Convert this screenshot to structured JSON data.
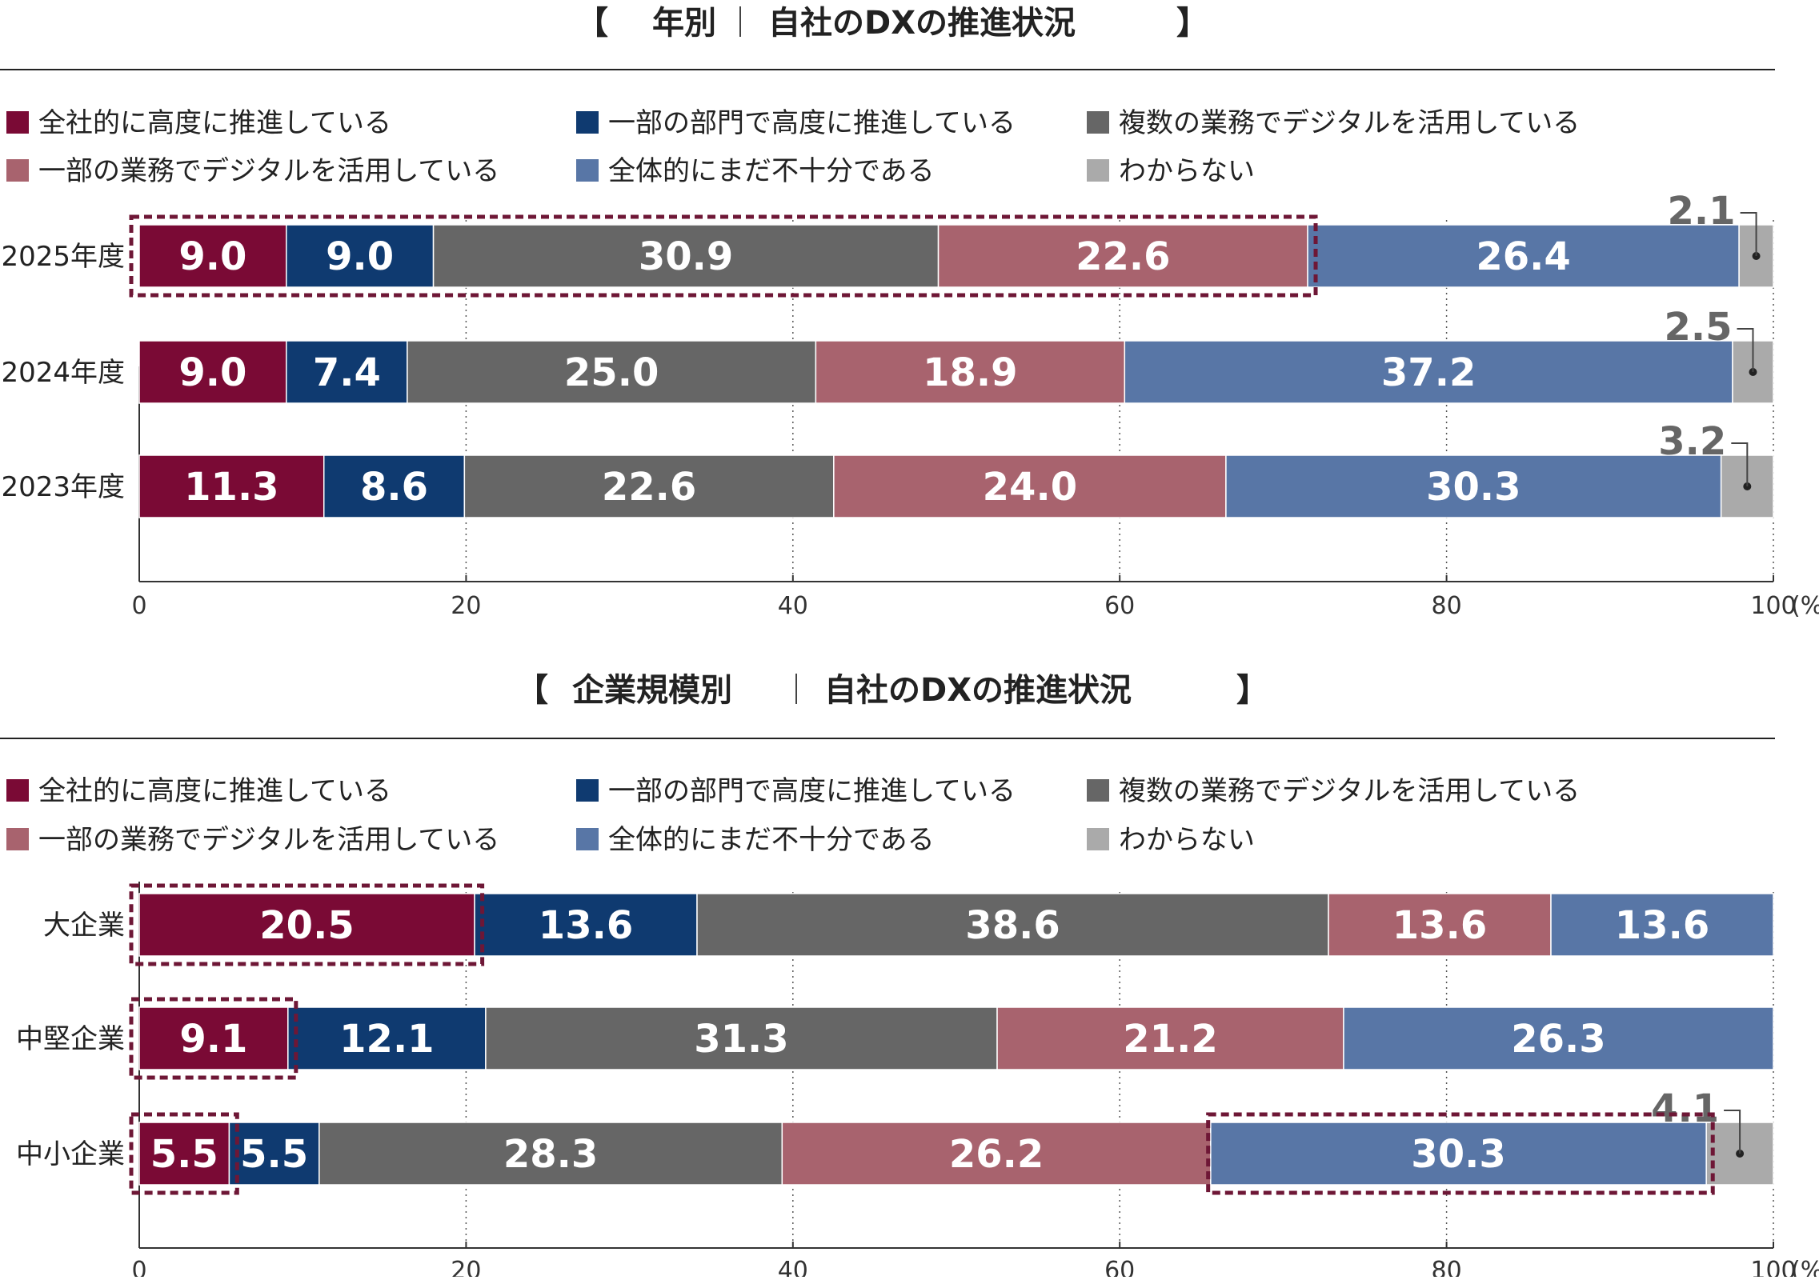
{
  "legend_colors": [
    "#7a0a35",
    "#0f3a70",
    "#666666",
    "#a8636e",
    "#5876a6",
    "#aaaaaa"
  ],
  "highlight_color": "#6e1736",
  "chart_data": [
    {
      "type": "bar",
      "orientation": "horizontal-stacked",
      "title_parts": [
        "【",
        "年別",
        "自社のDXの推進状況",
        "】"
      ],
      "legend": [
        "全社的に高度に推進している",
        "一部の部門で高度に推進している",
        "複数の業務でデジタルを活用している",
        "一部の業務でデジタルを活用している",
        "全体的にまだ不十分である",
        "わからない"
      ],
      "categories": [
        "2025年度",
        "2024年度",
        "2023年度"
      ],
      "series": [
        {
          "name": "全社的に高度に推進している",
          "values": [
            9.0,
            9.0,
            11.3
          ]
        },
        {
          "name": "一部の部門で高度に推進している",
          "values": [
            9.0,
            7.4,
            8.6
          ]
        },
        {
          "name": "複数の業務でデジタルを活用している",
          "values": [
            30.9,
            25.0,
            22.6
          ]
        },
        {
          "name": "一部の業務でデジタルを活用している",
          "values": [
            22.6,
            18.9,
            24.0
          ]
        },
        {
          "name": "全体的にまだ不十分である",
          "values": [
            26.4,
            37.2,
            30.3
          ]
        },
        {
          "name": "わからない",
          "values": [
            2.1,
            2.5,
            3.2
          ]
        }
      ],
      "labels": [
        [
          "9.0",
          "9.0",
          "30.9",
          "22.6",
          "26.4",
          "2.1"
        ],
        [
          "9.0",
          "7.4",
          "25.0",
          "18.9",
          "37.2",
          "2.5"
        ],
        [
          "11.3",
          "8.6",
          "22.6",
          "24.0",
          "30.3",
          "3.2"
        ]
      ],
      "highlights": [
        {
          "row": 0,
          "from": 0,
          "to": 71.5
        }
      ],
      "xlim": [
        0,
        100
      ],
      "xticks": [
        0,
        20,
        40,
        60,
        80,
        100
      ],
      "xtick_labels": [
        "0",
        "20",
        "40",
        "60",
        "80",
        "100"
      ],
      "xunit": "(%)"
    },
    {
      "type": "bar",
      "orientation": "horizontal-stacked",
      "title_parts": [
        "【",
        "企業規模別",
        "自社のDXの推進状況",
        "】"
      ],
      "legend": [
        "全社的に高度に推進している",
        "一部の部門で高度に推進している",
        "複数の業務でデジタルを活用している",
        "一部の業務でデジタルを活用している",
        "全体的にまだ不十分である",
        "わからない"
      ],
      "categories": [
        "大企業",
        "中堅企業",
        "中小企業"
      ],
      "series": [
        {
          "name": "全社的に高度に推進している",
          "values": [
            20.5,
            9.1,
            5.5
          ]
        },
        {
          "name": "一部の部門で高度に推進している",
          "values": [
            13.6,
            12.1,
            5.5
          ]
        },
        {
          "name": "複数の業務でデジタルを活用している",
          "values": [
            38.6,
            31.3,
            28.3
          ]
        },
        {
          "name": "一部の業務でデジタルを活用している",
          "values": [
            13.6,
            21.2,
            26.2
          ]
        },
        {
          "name": "全体的にまだ不十分である",
          "values": [
            13.6,
            26.3,
            30.3
          ]
        },
        {
          "name": "わからない",
          "values": [
            0,
            0,
            4.1
          ]
        }
      ],
      "labels": [
        [
          "20.5",
          "13.6",
          "38.6",
          "13.6",
          "13.6",
          ""
        ],
        [
          "9.1",
          "12.1",
          "31.3",
          "21.2",
          "26.3",
          ""
        ],
        [
          "5.5",
          "5.5",
          "28.3",
          "26.2",
          "30.3",
          "4.1"
        ]
      ],
      "highlights": [
        {
          "row": 0,
          "from": 0,
          "to": 20.5
        },
        {
          "row": 1,
          "from": 0,
          "to": 9.1
        },
        {
          "row": 2,
          "from": 0,
          "to": 5.5
        },
        {
          "row": 2,
          "from": 65.9,
          "to": 95.8
        }
      ],
      "xlim": [
        0,
        100
      ],
      "xticks": [
        0,
        20,
        40,
        60,
        80,
        100
      ],
      "xtick_labels": [
        "0",
        "20",
        "40",
        "60",
        "80",
        "100"
      ],
      "xunit": "(%)"
    }
  ]
}
